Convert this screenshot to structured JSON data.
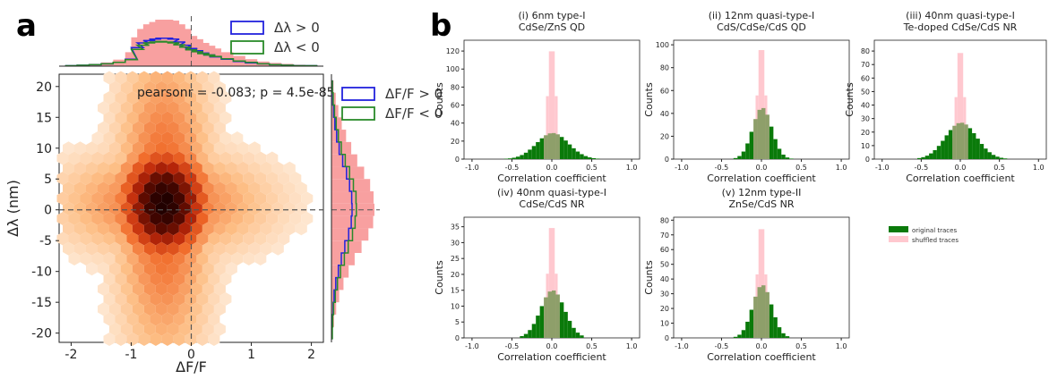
{
  "panel_labels": {
    "a": "a",
    "b": "b"
  },
  "colors": {
    "hist_fill": "#f8a0a0",
    "pos_line": "#2222dd",
    "neg_line": "#2a8a2a",
    "original": "#0a7a0a",
    "shuffled": "#ffc8cf",
    "overlap": "#8e9f6a",
    "guide": "#555555"
  },
  "chart_data": [
    {
      "id": "a-hexbin",
      "type": "heatmap",
      "xlabel": "ΔF/F",
      "ylabel": "Δλ (nm)",
      "xlim": [
        -2.2,
        2.2
      ],
      "ylim": [
        -21.5,
        22
      ],
      "xticks": [
        "-2",
        "-1",
        "0",
        "1",
        "2"
      ],
      "yticks": [
        "20",
        "15",
        "10",
        "5",
        "0",
        "-5",
        "-10",
        "-15",
        "-20"
      ],
      "annotation": "pearsonr = -0.083; p = 4.5e-85",
      "density_center": {
        "x": -0.45,
        "y": 1.0
      },
      "density_spread": {
        "x": 0.45,
        "y": 5.5
      },
      "reference_lines": {
        "x": 0,
        "y": 0
      },
      "top_marginal": {
        "x": [
          -2.0,
          -1.8,
          -1.6,
          -1.4,
          -1.2,
          -1.0,
          -0.9,
          -0.8,
          -0.7,
          -0.6,
          -0.5,
          -0.4,
          -0.3,
          -0.2,
          -0.1,
          0.0,
          0.1,
          0.2,
          0.3,
          0.4,
          0.6,
          0.8,
          1.0,
          1.2,
          1.4,
          1.6,
          1.8,
          2.0
        ],
        "all": [
          0.02,
          0.03,
          0.05,
          0.08,
          0.14,
          0.3,
          0.62,
          0.8,
          0.9,
          0.95,
          1.0,
          1.0,
          0.98,
          0.9,
          0.8,
          0.65,
          0.58,
          0.5,
          0.44,
          0.38,
          0.3,
          0.22,
          0.15,
          0.1,
          0.07,
          0.05,
          0.03,
          0.02
        ],
        "series": [
          {
            "name": "Δλ > 0",
            "values": [
              0.01,
              0.02,
              0.03,
              0.05,
              0.08,
              0.15,
              0.4,
              0.5,
              0.55,
              0.58,
              0.6,
              0.6,
              0.58,
              0.52,
              0.45,
              0.38,
              0.33,
              0.28,
              0.24,
              0.2,
              0.15,
              0.1,
              0.07,
              0.05,
              0.03,
              0.02,
              0.01,
              0.01
            ]
          },
          {
            "name": "Δλ < 0",
            "values": [
              0.01,
              0.02,
              0.03,
              0.05,
              0.08,
              0.14,
              0.36,
              0.45,
              0.5,
              0.52,
              0.53,
              0.52,
              0.5,
              0.46,
              0.41,
              0.35,
              0.31,
              0.27,
              0.24,
              0.21,
              0.16,
              0.11,
              0.08,
              0.05,
              0.03,
              0.02,
              0.01,
              0.01
            ]
          }
        ]
      },
      "right_marginal": {
        "y": [
          20,
          18,
          16,
          14,
          12,
          10,
          8,
          6,
          4,
          2,
          0,
          -2,
          -4,
          -6,
          -8,
          -10,
          -12,
          -14,
          -16,
          -18,
          -20
        ],
        "all": [
          0.05,
          0.1,
          0.16,
          0.24,
          0.34,
          0.46,
          0.6,
          0.76,
          0.9,
          0.98,
          1.0,
          0.97,
          0.86,
          0.7,
          0.54,
          0.4,
          0.28,
          0.18,
          0.11,
          0.06,
          0.03
        ],
        "series": [
          {
            "name": "ΔF/F > 0",
            "values": [
              0.02,
              0.03,
              0.05,
              0.08,
              0.12,
              0.18,
              0.26,
              0.35,
              0.42,
              0.47,
              0.48,
              0.46,
              0.4,
              0.31,
              0.23,
              0.16,
              0.1,
              0.06,
              0.04,
              0.02,
              0.01
            ]
          },
          {
            "name": "ΔF/F < 0",
            "values": [
              0.02,
              0.04,
              0.07,
              0.11,
              0.16,
              0.23,
              0.32,
              0.42,
              0.51,
              0.57,
              0.58,
              0.55,
              0.49,
              0.39,
              0.3,
              0.21,
              0.14,
              0.09,
              0.05,
              0.03,
              0.02
            ]
          }
        ]
      }
    },
    {
      "id": "b-i",
      "type": "bar",
      "title": "(i) 6nm type-I",
      "subtitle": "CdSe/ZnS QD",
      "xlabel": "Correlation coefficient",
      "ylabel": "Counts",
      "xlim": [
        -1.1,
        1.1
      ],
      "ylim": [
        0,
        132
      ],
      "xticks": [
        -1.0,
        -0.5,
        0.0,
        0.5,
        1.0
      ],
      "yticks": [
        0,
        20,
        40,
        60,
        80,
        100,
        120
      ],
      "original_sigma": 0.2,
      "original_peak": 29,
      "shuffled_sigma": 0.05,
      "shuffled_peak": 128
    },
    {
      "id": "b-ii",
      "type": "bar",
      "title": "(ii) 12nm quasi-type-I",
      "subtitle": "CdS/CdSe/CdS QD",
      "xlabel": "Correlation coefficient",
      "ylabel": "Counts",
      "xlim": [
        -1.1,
        1.1
      ],
      "ylim": [
        0,
        104
      ],
      "xticks": [
        -1.0,
        -0.5,
        0.0,
        0.5,
        1.0
      ],
      "yticks": [
        0,
        20,
        40,
        60,
        80,
        100
      ],
      "original_sigma": 0.12,
      "original_peak": 45,
      "shuffled_sigma": 0.05,
      "shuffled_peak": 102
    },
    {
      "id": "b-iii",
      "type": "bar",
      "title": "(iii) 40nm quasi-type-I",
      "subtitle": "Te-doped CdSe/CdS NR",
      "xlabel": "Correlation coefficient",
      "ylabel": "Counts",
      "xlim": [
        -1.1,
        1.1
      ],
      "ylim": [
        0,
        88
      ],
      "xticks": [
        -1.0,
        -0.5,
        0.0,
        0.5,
        1.0
      ],
      "yticks": [
        0,
        10,
        20,
        30,
        40,
        50,
        60,
        70,
        80
      ],
      "original_sigma": 0.2,
      "original_peak": 27,
      "shuffled_sigma": 0.05,
      "shuffled_peak": 84
    },
    {
      "id": "b-iv",
      "type": "bar",
      "title": "(iv) 40nm quasi-type-I",
      "subtitle": "CdSe/CdS NR",
      "xlabel": "Correlation coefficient",
      "ylabel": "Counts",
      "xlim": [
        -1.1,
        1.1
      ],
      "ylim": [
        0,
        38
      ],
      "xticks": [
        -1.0,
        -0.5,
        0.0,
        0.5,
        1.0
      ],
      "yticks": [
        0,
        5,
        10,
        15,
        20,
        25,
        30,
        35
      ],
      "original_sigma": 0.15,
      "original_peak": 15,
      "shuffled_sigma": 0.05,
      "shuffled_peak": 37
    },
    {
      "id": "b-v",
      "type": "bar",
      "title": "(v) 12nm type-II",
      "subtitle": "ZnSe/CdS NR",
      "xlabel": "Correlation coefficient",
      "ylabel": "Counts",
      "xlim": [
        -1.1,
        1.1
      ],
      "ylim": [
        0,
        82
      ],
      "xticks": [
        -1.0,
        -0.5,
        0.0,
        0.5,
        1.0
      ],
      "yticks": [
        0,
        10,
        20,
        30,
        40,
        50,
        60,
        70,
        80
      ],
      "original_sigma": 0.12,
      "original_peak": 36,
      "shuffled_sigma": 0.05,
      "shuffled_peak": 79
    }
  ],
  "legend_b": {
    "original": "original traces",
    "shuffled": "shuffled traces"
  }
}
